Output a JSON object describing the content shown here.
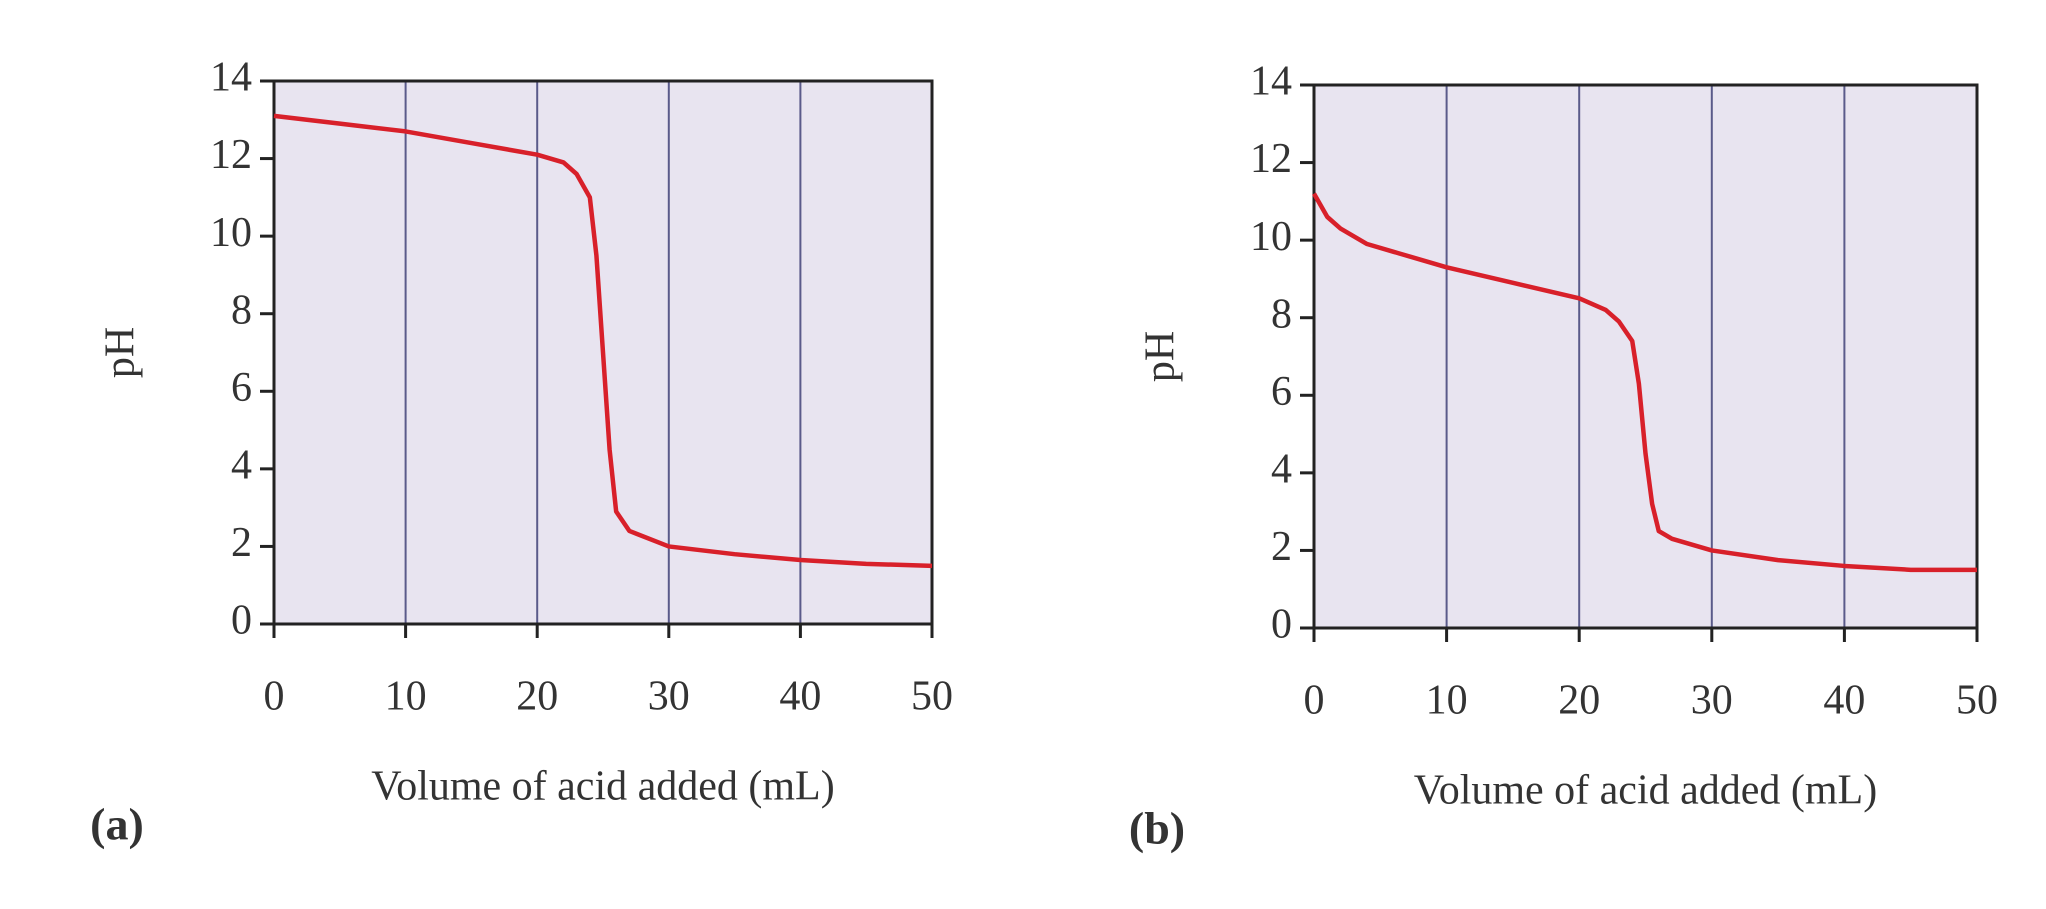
{
  "chart_data": [
    {
      "type": "line",
      "label": "(a)",
      "x_label": "Volume of acid added (mL)",
      "y_label": "pH",
      "x": [
        0,
        5,
        10,
        15,
        20,
        22,
        23,
        24,
        24.5,
        25,
        25.5,
        26,
        27,
        30,
        35,
        40,
        45,
        50
      ],
      "series": [
        {
          "color": "#d8202a",
          "values": [
            13.1,
            12.9,
            12.7,
            12.4,
            12.1,
            11.9,
            11.6,
            11.0,
            9.5,
            7.0,
            4.5,
            2.9,
            2.4,
            2.0,
            1.8,
            1.65,
            1.55,
            1.5
          ]
        }
      ],
      "xlim": [
        0,
        50
      ],
      "ylim": [
        0,
        14
      ],
      "xticks": [
        0,
        10,
        20,
        30,
        40,
        50
      ],
      "yticks": [
        0,
        2,
        4,
        6,
        8,
        10,
        12,
        14
      ],
      "grid": "x",
      "background": "#e8e4f0"
    },
    {
      "type": "line",
      "label": "(b)",
      "x_label": "Volume of acid added (mL)",
      "y_label": "pH",
      "x": [
        0,
        1,
        2,
        4,
        6,
        10,
        15,
        20,
        22,
        23,
        24,
        24.5,
        25,
        25.5,
        26,
        27,
        30,
        35,
        40,
        45,
        50
      ],
      "series": [
        {
          "color": "#d8202a",
          "values": [
            11.2,
            10.6,
            10.3,
            9.9,
            9.7,
            9.3,
            8.9,
            8.5,
            8.2,
            7.9,
            7.4,
            6.3,
            4.5,
            3.2,
            2.5,
            2.3,
            2.0,
            1.75,
            1.6,
            1.5,
            1.5
          ]
        }
      ],
      "xlim": [
        0,
        50
      ],
      "ylim": [
        0,
        14
      ],
      "xticks": [
        0,
        10,
        20,
        30,
        40,
        50
      ],
      "yticks": [
        0,
        2,
        4,
        6,
        8,
        10,
        12,
        14
      ],
      "grid": "x",
      "background": "#e8e4f0"
    }
  ]
}
